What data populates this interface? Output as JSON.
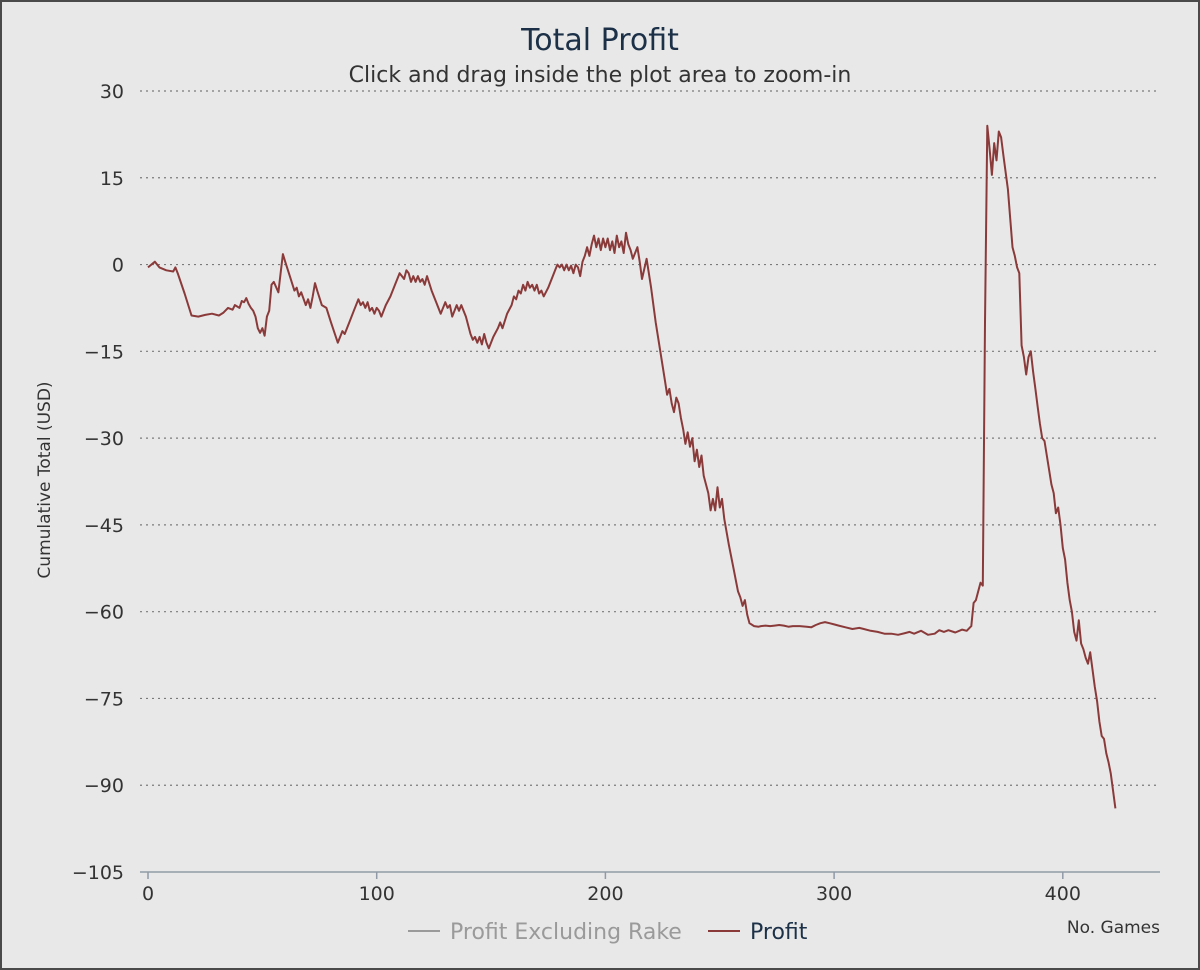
{
  "chart_data": {
    "type": "line",
    "title": "Total Profit",
    "subtitle": "Click and drag inside the plot area to zoom-in",
    "xlabel": "No. Games",
    "ylabel": "Cumulative Total (USD)",
    "xlim": [
      0,
      440
    ],
    "ylim": [
      -105,
      30
    ],
    "xticks": [
      0,
      100,
      200,
      300,
      400
    ],
    "yticks": [
      30,
      15,
      0,
      -15,
      -30,
      -45,
      -60,
      -75,
      -90,
      -105
    ],
    "grid": true,
    "legend": "bottom-center",
    "series": [
      {
        "name": "Profit",
        "color": "#8b3a3a",
        "points": [
          [
            0,
            -0.5
          ],
          [
            3,
            0.5
          ],
          [
            5,
            -0.5
          ],
          [
            8,
            -1
          ],
          [
            11,
            -1.2
          ],
          [
            12,
            -0.5
          ],
          [
            13,
            -1.5
          ],
          [
            16,
            -5
          ],
          [
            19,
            -8.8
          ],
          [
            22,
            -9
          ],
          [
            25,
            -8.7
          ],
          [
            28,
            -8.5
          ],
          [
            31,
            -8.8
          ],
          [
            33,
            -8.3
          ],
          [
            35,
            -7.5
          ],
          [
            37,
            -7.8
          ],
          [
            38,
            -7
          ],
          [
            40,
            -7.5
          ],
          [
            41,
            -6.3
          ],
          [
            42,
            -6.5
          ],
          [
            43,
            -5.8
          ],
          [
            44,
            -6.8
          ],
          [
            45,
            -7.5
          ],
          [
            46,
            -8
          ],
          [
            47,
            -9
          ],
          [
            48,
            -11
          ],
          [
            49,
            -11.8
          ],
          [
            50,
            -11
          ],
          [
            51,
            -12.3
          ],
          [
            52,
            -9
          ],
          [
            53,
            -8
          ],
          [
            54,
            -3.5
          ],
          [
            55,
            -3
          ],
          [
            57,
            -4.8
          ],
          [
            58,
            -1.5
          ],
          [
            59,
            1.8
          ],
          [
            60,
            0.5
          ],
          [
            62,
            -2
          ],
          [
            64,
            -4.5
          ],
          [
            65,
            -4
          ],
          [
            66,
            -5.5
          ],
          [
            67,
            -4.8
          ],
          [
            69,
            -7
          ],
          [
            70,
            -6
          ],
          [
            71,
            -7.5
          ],
          [
            72,
            -5.5
          ],
          [
            73,
            -3.2
          ],
          [
            74,
            -4.5
          ],
          [
            76,
            -7
          ],
          [
            78,
            -7.5
          ],
          [
            80,
            -10
          ],
          [
            83,
            -13.5
          ],
          [
            85,
            -11.5
          ],
          [
            86,
            -12
          ],
          [
            88,
            -10
          ],
          [
            90,
            -8
          ],
          [
            92,
            -6
          ],
          [
            93,
            -7
          ],
          [
            94,
            -6.5
          ],
          [
            95,
            -7.5
          ],
          [
            96,
            -6.5
          ],
          [
            97,
            -8
          ],
          [
            98,
            -7.5
          ],
          [
            99,
            -8.5
          ],
          [
            100,
            -7.5
          ],
          [
            101,
            -8
          ],
          [
            102,
            -9
          ],
          [
            104,
            -7
          ],
          [
            106,
            -5.5
          ],
          [
            108,
            -3.5
          ],
          [
            110,
            -1.5
          ],
          [
            111,
            -2
          ],
          [
            112,
            -2.5
          ],
          [
            113,
            -1
          ],
          [
            114,
            -1.5
          ],
          [
            115,
            -3
          ],
          [
            116,
            -2
          ],
          [
            117,
            -3
          ],
          [
            118,
            -2
          ],
          [
            119,
            -3
          ],
          [
            120,
            -2.5
          ],
          [
            121,
            -3.5
          ],
          [
            122,
            -2
          ],
          [
            124,
            -4.5
          ],
          [
            126,
            -6.5
          ],
          [
            128,
            -8.5
          ],
          [
            130,
            -6.5
          ],
          [
            131,
            -7.5
          ],
          [
            132,
            -7
          ],
          [
            133,
            -9
          ],
          [
            135,
            -7
          ],
          [
            136,
            -8
          ],
          [
            137,
            -7
          ],
          [
            139,
            -9
          ],
          [
            141,
            -12
          ],
          [
            142,
            -13
          ],
          [
            143,
            -12.5
          ],
          [
            144,
            -13.5
          ],
          [
            145,
            -12.5
          ],
          [
            146,
            -13.8
          ],
          [
            147,
            -12
          ],
          [
            148,
            -13.5
          ],
          [
            149,
            -14.5
          ],
          [
            151,
            -12.5
          ],
          [
            153,
            -11
          ],
          [
            154,
            -10
          ],
          [
            155,
            -11
          ],
          [
            157,
            -8.5
          ],
          [
            159,
            -7
          ],
          [
            160,
            -5.5
          ],
          [
            161,
            -6
          ],
          [
            162,
            -4.5
          ],
          [
            163,
            -5
          ],
          [
            164,
            -3.5
          ],
          [
            165,
            -4.5
          ],
          [
            166,
            -3
          ],
          [
            167,
            -4
          ],
          [
            168,
            -3.5
          ],
          [
            169,
            -4.5
          ],
          [
            170,
            -3.5
          ],
          [
            171,
            -5
          ],
          [
            172,
            -4.5
          ],
          [
            173,
            -5.5
          ],
          [
            175,
            -4
          ],
          [
            177,
            -2
          ],
          [
            178,
            -1
          ],
          [
            179,
            0
          ],
          [
            180,
            -0.5
          ],
          [
            181,
            0
          ],
          [
            182,
            -1
          ],
          [
            183,
            0
          ],
          [
            184,
            -1
          ],
          [
            185,
            -0.2
          ],
          [
            186,
            -1.5
          ],
          [
            187,
            0
          ],
          [
            188,
            -0.5
          ],
          [
            189,
            -2
          ],
          [
            190,
            0.5
          ],
          [
            191,
            1.5
          ],
          [
            192,
            3
          ],
          [
            193,
            1.5
          ],
          [
            194,
            3.5
          ],
          [
            195,
            5
          ],
          [
            196,
            3
          ],
          [
            197,
            4.5
          ],
          [
            198,
            2.5
          ],
          [
            199,
            4.5
          ],
          [
            200,
            3
          ],
          [
            201,
            4.5
          ],
          [
            202,
            2.5
          ],
          [
            203,
            4
          ],
          [
            204,
            2
          ],
          [
            205,
            5
          ],
          [
            206,
            3
          ],
          [
            207,
            4
          ],
          [
            208,
            2
          ],
          [
            209,
            5.5
          ],
          [
            210,
            3.5
          ],
          [
            211,
            2.5
          ],
          [
            212,
            1
          ],
          [
            214,
            3
          ],
          [
            215,
            0.5
          ],
          [
            216,
            -2.5
          ],
          [
            218,
            1
          ],
          [
            220,
            -4
          ],
          [
            222,
            -10
          ],
          [
            224,
            -15
          ],
          [
            226,
            -20
          ],
          [
            227,
            -22.5
          ],
          [
            228,
            -21.5
          ],
          [
            229,
            -24
          ],
          [
            230,
            -25.5
          ],
          [
            231,
            -23
          ],
          [
            232,
            -24
          ],
          [
            233,
            -26.5
          ],
          [
            234,
            -28.5
          ],
          [
            235,
            -31
          ],
          [
            236,
            -29
          ],
          [
            237,
            -31.5
          ],
          [
            238,
            -30
          ],
          [
            239,
            -34
          ],
          [
            240,
            -32
          ],
          [
            241,
            -35
          ],
          [
            242,
            -33
          ],
          [
            243,
            -36.5
          ],
          [
            245,
            -39.5
          ],
          [
            246,
            -42.5
          ],
          [
            247,
            -40.5
          ],
          [
            248,
            -42.5
          ],
          [
            249,
            -38.5
          ],
          [
            250,
            -42
          ],
          [
            251,
            -40.5
          ],
          [
            252,
            -44
          ],
          [
            254,
            -48.5
          ],
          [
            256,
            -52.5
          ],
          [
            258,
            -56.5
          ],
          [
            259,
            -57.5
          ],
          [
            260,
            -59
          ],
          [
            261,
            -58
          ],
          [
            262,
            -60.5
          ],
          [
            263,
            -62
          ],
          [
            265,
            -62.5
          ],
          [
            267,
            -62.6
          ],
          [
            268,
            -62.5
          ],
          [
            270,
            -62.4
          ],
          [
            272,
            -62.5
          ],
          [
            274,
            -62.4
          ],
          [
            276,
            -62.3
          ],
          [
            278,
            -62.4
          ],
          [
            280,
            -62.6
          ],
          [
            282,
            -62.5
          ],
          [
            285,
            -62.5
          ],
          [
            288,
            -62.6
          ],
          [
            290,
            -62.7
          ],
          [
            292,
            -62.3
          ],
          [
            294,
            -62
          ],
          [
            296,
            -61.8
          ],
          [
            298,
            -62
          ],
          [
            300,
            -62.2
          ],
          [
            302,
            -62.4
          ],
          [
            305,
            -62.7
          ],
          [
            308,
            -63
          ],
          [
            311,
            -62.8
          ],
          [
            313,
            -63
          ],
          [
            316,
            -63.3
          ],
          [
            319,
            -63.5
          ],
          [
            322,
            -63.8
          ],
          [
            325,
            -63.8
          ],
          [
            328,
            -64
          ],
          [
            331,
            -63.7
          ],
          [
            333,
            -63.5
          ],
          [
            335,
            -63.8
          ],
          [
            338,
            -63.3
          ],
          [
            341,
            -64
          ],
          [
            344,
            -63.8
          ],
          [
            346,
            -63.2
          ],
          [
            348,
            -63.5
          ],
          [
            350,
            -63.2
          ],
          [
            353,
            -63.6
          ],
          [
            356,
            -63.1
          ],
          [
            358,
            -63.3
          ],
          [
            360,
            -62.5
          ],
          [
            361,
            -58.5
          ],
          [
            362,
            -58
          ],
          [
            363,
            -56.5
          ],
          [
            364,
            -55
          ],
          [
            365,
            -55.5
          ],
          [
            366,
            -10
          ],
          [
            367,
            24
          ],
          [
            368,
            20
          ],
          [
            369,
            15.5
          ],
          [
            370,
            21
          ],
          [
            371,
            18
          ],
          [
            372,
            23
          ],
          [
            373,
            22
          ],
          [
            374,
            19
          ],
          [
            375,
            16
          ],
          [
            376,
            13
          ],
          [
            377,
            8
          ],
          [
            378,
            3
          ],
          [
            379,
            1.5
          ],
          [
            380,
            -0.5
          ],
          [
            381,
            -1.5
          ],
          [
            382,
            -14
          ],
          [
            383,
            -16
          ],
          [
            384,
            -19
          ],
          [
            385,
            -16
          ],
          [
            386,
            -15
          ],
          [
            387,
            -18.5
          ],
          [
            388,
            -21.5
          ],
          [
            389,
            -24.5
          ],
          [
            390,
            -27.5
          ],
          [
            391,
            -30
          ],
          [
            392,
            -30.5
          ],
          [
            393,
            -33
          ],
          [
            394,
            -35.5
          ],
          [
            395,
            -38
          ],
          [
            396,
            -39.5
          ],
          [
            397,
            -43
          ],
          [
            398,
            -42
          ],
          [
            399,
            -45
          ],
          [
            400,
            -49
          ],
          [
            401,
            -51
          ],
          [
            402,
            -55
          ],
          [
            403,
            -58
          ],
          [
            404,
            -60
          ],
          [
            405,
            -63.5
          ],
          [
            406,
            -65
          ],
          [
            407,
            -61.5
          ],
          [
            408,
            -65.5
          ],
          [
            409,
            -66.5
          ],
          [
            410,
            -68
          ],
          [
            411,
            -69
          ],
          [
            412,
            -67
          ],
          [
            413,
            -70
          ],
          [
            414,
            -73
          ],
          [
            415,
            -75.5
          ],
          [
            416,
            -79
          ],
          [
            417,
            -81.5
          ],
          [
            418,
            -82
          ],
          [
            419,
            -84.5
          ],
          [
            420,
            -86
          ],
          [
            421,
            -88
          ],
          [
            422,
            -91
          ],
          [
            423,
            -94
          ]
        ]
      }
    ],
    "legend_items": [
      {
        "name": "Profit Excluding Rake",
        "color": "#9a9a9a",
        "muted": true
      },
      {
        "name": "Profit",
        "color": "#8b3a3a",
        "muted": false
      }
    ]
  }
}
